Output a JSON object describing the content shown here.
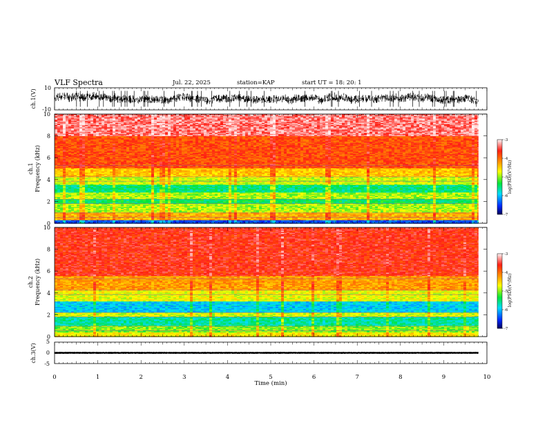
{
  "header": {
    "title": "VLF Spectra",
    "date": "Jul. 22, 2025",
    "station": "station=KAP",
    "start": "start UT =  18: 20: 1"
  },
  "chart_data": [
    {
      "type": "line",
      "panel": "ch1-waveform",
      "ylabel": "ch.1(V)",
      "ylim": [
        -10,
        10
      ],
      "yticks": [
        "10",
        "-10"
      ],
      "xlim": [
        0,
        10
      ],
      "series": [
        {
          "name": "ch.1",
          "description_value_range": [
            -6,
            6
          ],
          "fill_until_min": 9.8
        }
      ]
    },
    {
      "type": "heatmap",
      "panel": "ch1-spectrogram",
      "ylabel_line1": "ch.1",
      "ylabel_line2": "Frequency (kHz)",
      "ylim": [
        0,
        10
      ],
      "yticks": [
        "0",
        "2",
        "4",
        "6",
        "8",
        "10"
      ],
      "xlim": [
        0,
        10
      ],
      "data_until_min": 9.8,
      "colorbar": {
        "label": "log(PSD)(V²/Hz)",
        "min": -7,
        "max": -3,
        "ticks": [
          "-3",
          "-4",
          "-5",
          "-6",
          "-7"
        ]
      },
      "bands": [
        {
          "from_khz": 0,
          "to_khz": 0.3,
          "level": -6.4
        },
        {
          "from_khz": 0.3,
          "to_khz": 1.0,
          "level": -4.3
        },
        {
          "from_khz": 1.0,
          "to_khz": 1.8,
          "level": -4.9
        },
        {
          "from_khz": 1.8,
          "to_khz": 2.2,
          "level": -5.4
        },
        {
          "from_khz": 2.2,
          "to_khz": 2.8,
          "level": -4.9
        },
        {
          "from_khz": 2.8,
          "to_khz": 3.5,
          "level": -5.5
        },
        {
          "from_khz": 3.5,
          "to_khz": 4.2,
          "level": -4.8
        },
        {
          "from_khz": 4.2,
          "to_khz": 5.0,
          "level": -4.4
        },
        {
          "from_khz": 5.0,
          "to_khz": 8.0,
          "level": -3.8
        },
        {
          "from_khz": 8.0,
          "to_khz": 10.0,
          "level": -3.3
        }
      ]
    },
    {
      "type": "heatmap",
      "panel": "ch2-spectrogram",
      "ylabel_line1": "ch.2",
      "ylabel_line2": "Frequency (kHz)",
      "ylim": [
        0,
        10
      ],
      "yticks": [
        "0",
        "2",
        "4",
        "6",
        "8",
        "10"
      ],
      "xlim": [
        0,
        10
      ],
      "data_until_min": 9.8,
      "colorbar": {
        "label": "log(PSD)(V²/Hz)",
        "min": -7,
        "max": -3,
        "ticks": [
          "-3",
          "-4",
          "-5",
          "-6",
          "-7"
        ]
      },
      "bands": [
        {
          "from_khz": 0,
          "to_khz": 0.4,
          "level": -4.6
        },
        {
          "from_khz": 0.4,
          "to_khz": 1.0,
          "level": -5.0
        },
        {
          "from_khz": 1.0,
          "to_khz": 1.8,
          "level": -5.6
        },
        {
          "from_khz": 1.8,
          "to_khz": 2.2,
          "level": -4.8
        },
        {
          "from_khz": 2.2,
          "to_khz": 3.2,
          "level": -5.9
        },
        {
          "from_khz": 3.2,
          "to_khz": 4.2,
          "level": -4.7
        },
        {
          "from_khz": 4.2,
          "to_khz": 5.5,
          "level": -4.2
        },
        {
          "from_khz": 5.5,
          "to_khz": 10.0,
          "level": -3.6
        }
      ]
    },
    {
      "type": "line",
      "panel": "ch3-waveform",
      "ylabel": "ch.3(V)",
      "ylim": [
        -5,
        5
      ],
      "yticks": [
        "5",
        "0",
        "-5"
      ],
      "xlim": [
        0,
        10
      ],
      "series": [
        {
          "name": "ch.3",
          "description_value_range": [
            -0.4,
            0.4
          ],
          "fill_until_min": 9.8
        }
      ]
    }
  ],
  "xaxis": {
    "label": "Time (min)",
    "ticks": [
      "0",
      "1",
      "2",
      "3",
      "4",
      "5",
      "6",
      "7",
      "8",
      "9",
      "10"
    ]
  }
}
